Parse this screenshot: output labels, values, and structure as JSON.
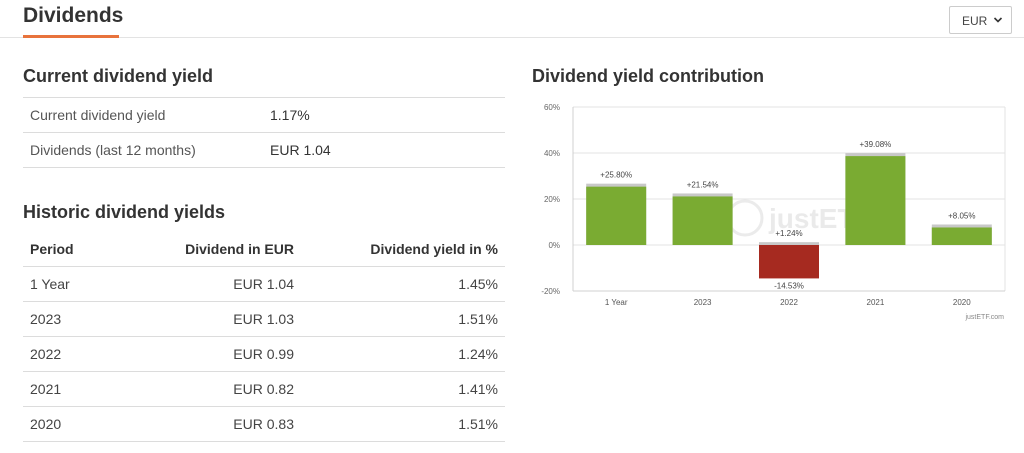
{
  "header": {
    "title": "Dividends",
    "currency": "EUR"
  },
  "current": {
    "title": "Current dividend yield",
    "rows": [
      {
        "label": "Current dividend yield",
        "value": "1.17%"
      },
      {
        "label": "Dividends (last 12 months)",
        "value": "EUR 1.04"
      }
    ]
  },
  "historic": {
    "title": "Historic dividend yields",
    "columns": [
      "Period",
      "Dividend in EUR",
      "Dividend yield in %"
    ],
    "rows": [
      {
        "period": "1 Year",
        "dividend": "EUR 1.04",
        "yield": "1.45%"
      },
      {
        "period": "2023",
        "dividend": "EUR 1.03",
        "yield": "1.51%"
      },
      {
        "period": "2022",
        "dividend": "EUR 0.99",
        "yield": "1.24%"
      },
      {
        "period": "2021",
        "dividend": "EUR 0.82",
        "yield": "1.41%"
      },
      {
        "period": "2020",
        "dividend": "EUR 0.83",
        "yield": "1.51%"
      }
    ]
  },
  "chart": {
    "title": "Dividend yield contribution",
    "credit": "justETF.com",
    "watermark": "justETF"
  },
  "chart_data": {
    "type": "bar",
    "title": "Dividend yield contribution",
    "categories": [
      "1 Year",
      "2023",
      "2022",
      "2021",
      "2020"
    ],
    "series": [
      {
        "name": "Total",
        "values": [
          25.8,
          21.54,
          -14.53,
          39.08,
          8.05
        ],
        "labels": [
          "+25.80%",
          "+21.54%",
          "-14.53%",
          "+39.08%",
          "+8.05%"
        ]
      },
      {
        "name": "Dividend",
        "values": [
          null,
          null,
          1.24,
          null,
          null
        ],
        "labels": [
          null,
          null,
          "+1.24%",
          null,
          null
        ]
      }
    ],
    "yticks": [
      60,
      40,
      20,
      0,
      -20
    ],
    "ytick_labels": [
      "60%",
      "40%",
      "20%",
      "0%",
      "-20%"
    ],
    "ylim": [
      -20,
      60
    ],
    "colors": {
      "positive": "#7aab32",
      "negative": "#a62a20",
      "cap": "#c8c8c8"
    }
  }
}
